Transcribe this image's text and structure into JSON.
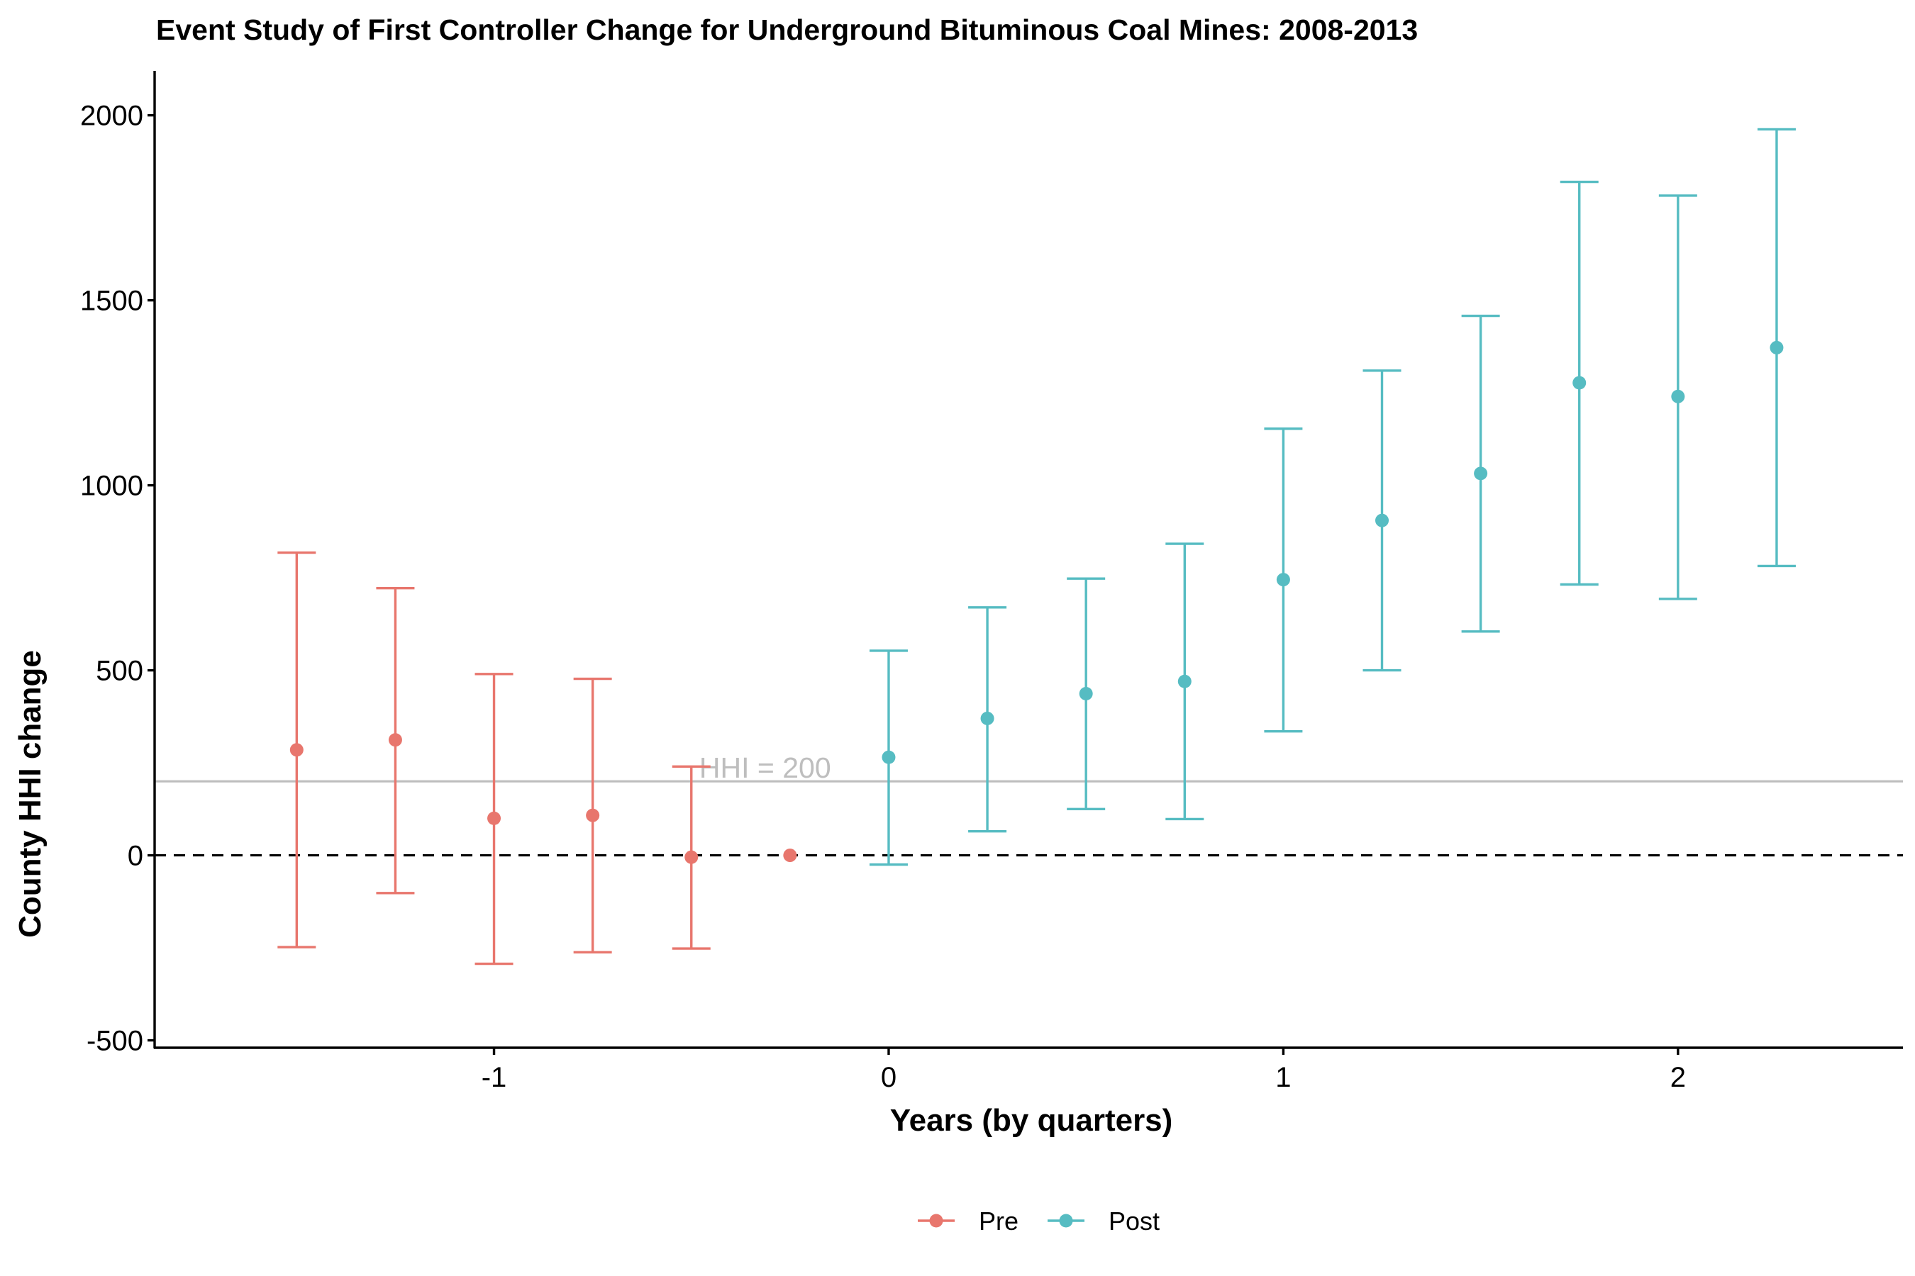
{
  "chart_data": {
    "type": "scatter",
    "title": "Event Study of First Controller Change for Underground Bituminous Coal Mines: 2008-2013",
    "xlabel": "Years (by quarters)",
    "ylabel": "County HHI change",
    "xlim": [
      -1.86,
      2.57
    ],
    "ylim": [
      -520,
      2120
    ],
    "x_ticks": [
      -1,
      0,
      1,
      2
    ],
    "x_tick_labels": [
      "-1",
      "0",
      "1",
      "2"
    ],
    "y_ticks": [
      -500,
      0,
      500,
      1000,
      1500,
      2000
    ],
    "y_tick_labels": [
      "-500",
      "0",
      "500",
      "1000",
      "1500",
      "2000"
    ],
    "grid": false,
    "legend_position": "bottom",
    "zero_line": {
      "y": 0,
      "style": "dashed",
      "color": "#000000"
    },
    "reference_line": {
      "y": 200,
      "label": "HHI = 200",
      "color": "#bebebe"
    },
    "series": [
      {
        "name": "Pre",
        "color": "#e8766d",
        "points": [
          {
            "x": -1.5,
            "y": 285,
            "lower": -248,
            "upper": 818
          },
          {
            "x": -1.25,
            "y": 312,
            "lower": -102,
            "upper": 722
          },
          {
            "x": -1.0,
            "y": 100,
            "lower": -293,
            "upper": 490
          },
          {
            "x": -0.75,
            "y": 108,
            "lower": -262,
            "upper": 477
          },
          {
            "x": -0.5,
            "y": -5,
            "lower": -252,
            "upper": 240
          },
          {
            "x": -0.25,
            "y": 0
          }
        ]
      },
      {
        "name": "Post",
        "color": "#56bcc2",
        "points": [
          {
            "x": 0.0,
            "y": 265,
            "lower": -25,
            "upper": 553
          },
          {
            "x": 0.25,
            "y": 370,
            "lower": 65,
            "upper": 670
          },
          {
            "x": 0.5,
            "y": 437,
            "lower": 125,
            "upper": 748
          },
          {
            "x": 0.75,
            "y": 470,
            "lower": 98,
            "upper": 842
          },
          {
            "x": 1.0,
            "y": 745,
            "lower": 335,
            "upper": 1153
          },
          {
            "x": 1.25,
            "y": 905,
            "lower": 500,
            "upper": 1310
          },
          {
            "x": 1.5,
            "y": 1032,
            "lower": 605,
            "upper": 1458
          },
          {
            "x": 1.75,
            "y": 1277,
            "lower": 732,
            "upper": 1820
          },
          {
            "x": 2.0,
            "y": 1240,
            "lower": 693,
            "upper": 1783
          },
          {
            "x": 2.25,
            "y": 1372,
            "lower": 782,
            "upper": 1962
          }
        ]
      }
    ]
  }
}
